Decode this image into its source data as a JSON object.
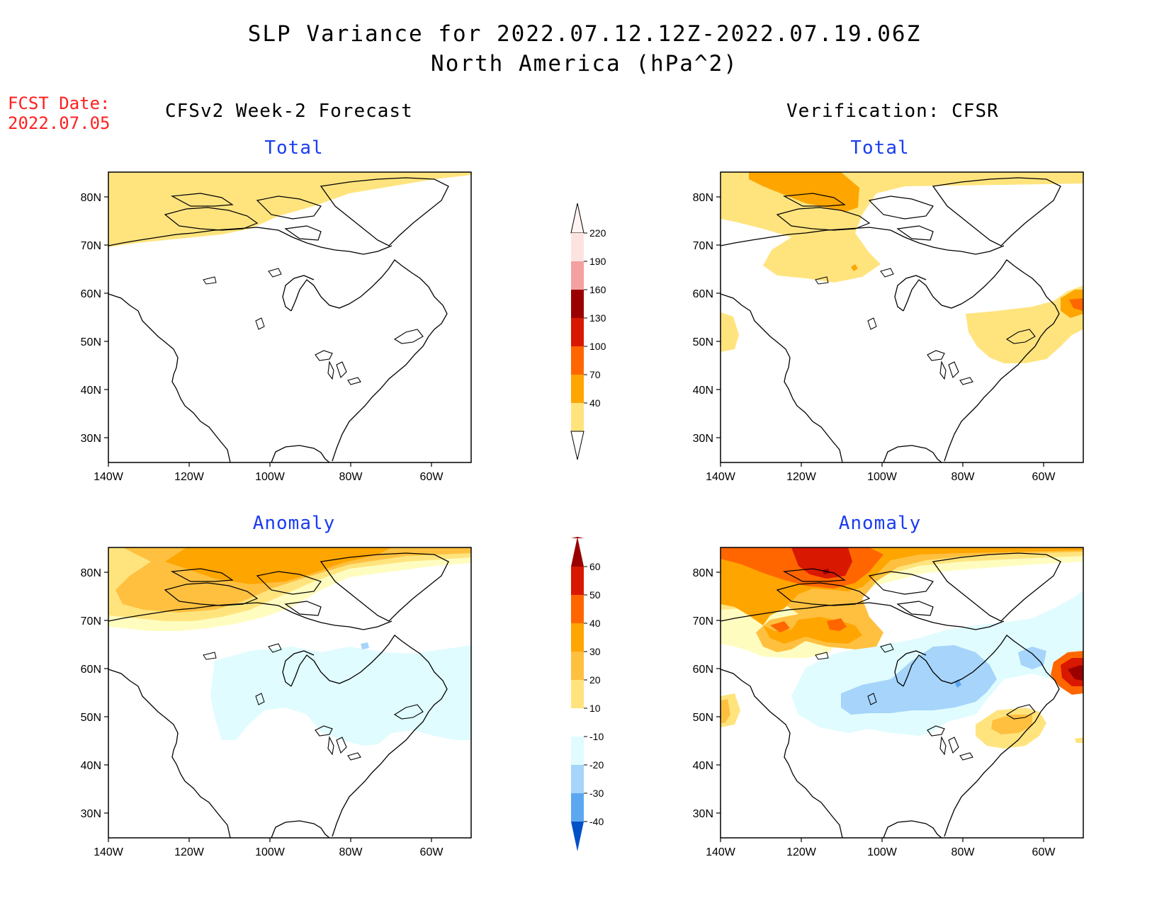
{
  "header": {
    "title": "SLP Variance for 2022.07.12.12Z-2022.07.19.06Z",
    "subtitle": "North America (hPa^2)"
  },
  "fcst_date": {
    "label": "FCST Date:",
    "value": "2022.07.05"
  },
  "columns": {
    "left_title": "CFSv2 Week-2 Forecast",
    "right_title": "Verification: CFSR"
  },
  "panels": [
    {
      "id": "forecast-total",
      "title": "Total"
    },
    {
      "id": "verification-total",
      "title": "Total"
    },
    {
      "id": "forecast-anomaly",
      "title": "Anomaly"
    },
    {
      "id": "verification-anomaly",
      "title": "Anomaly"
    }
  ],
  "axes": {
    "lat_ticks": [
      "80N",
      "70N",
      "60N",
      "50N",
      "40N",
      "30N"
    ],
    "lon_ticks": [
      "140W",
      "120W",
      "100W",
      "80W",
      "60W"
    ]
  },
  "colorbar_total": {
    "levels": [
      "220",
      "190",
      "160",
      "130",
      "100",
      "70",
      "40"
    ],
    "colors": [
      "#fde3e0",
      "#f4a0a0",
      "#9a0000",
      "#d81800",
      "#ff6600",
      "#ffa500",
      "#ffe47e"
    ]
  },
  "colorbar_anomaly": {
    "levels": [
      "60",
      "50",
      "40",
      "30",
      "20",
      "10",
      "-10",
      "-20",
      "-30",
      "-40"
    ],
    "colors": [
      "#9a0000",
      "#d81800",
      "#ff6600",
      "#ffa500",
      "#ffc040",
      "#ffe47e",
      "#fffcc0",
      "#ffffff",
      "#e0fcff",
      "#a6d4fa",
      "#5ca8f0",
      "#1870e0",
      "#0050c8"
    ]
  },
  "palette": {
    "yellow": "#ffe47e",
    "light_yellow": "#fffcc0",
    "gold": "#ffc040",
    "orange": "#ffa500",
    "dark_orange": "#ff6600",
    "red": "#d81800",
    "dark_red": "#9a0000",
    "light_cyan": "#e0fcff",
    "light_blue": "#a6d4fa",
    "blue": "#5ca8f0"
  }
}
